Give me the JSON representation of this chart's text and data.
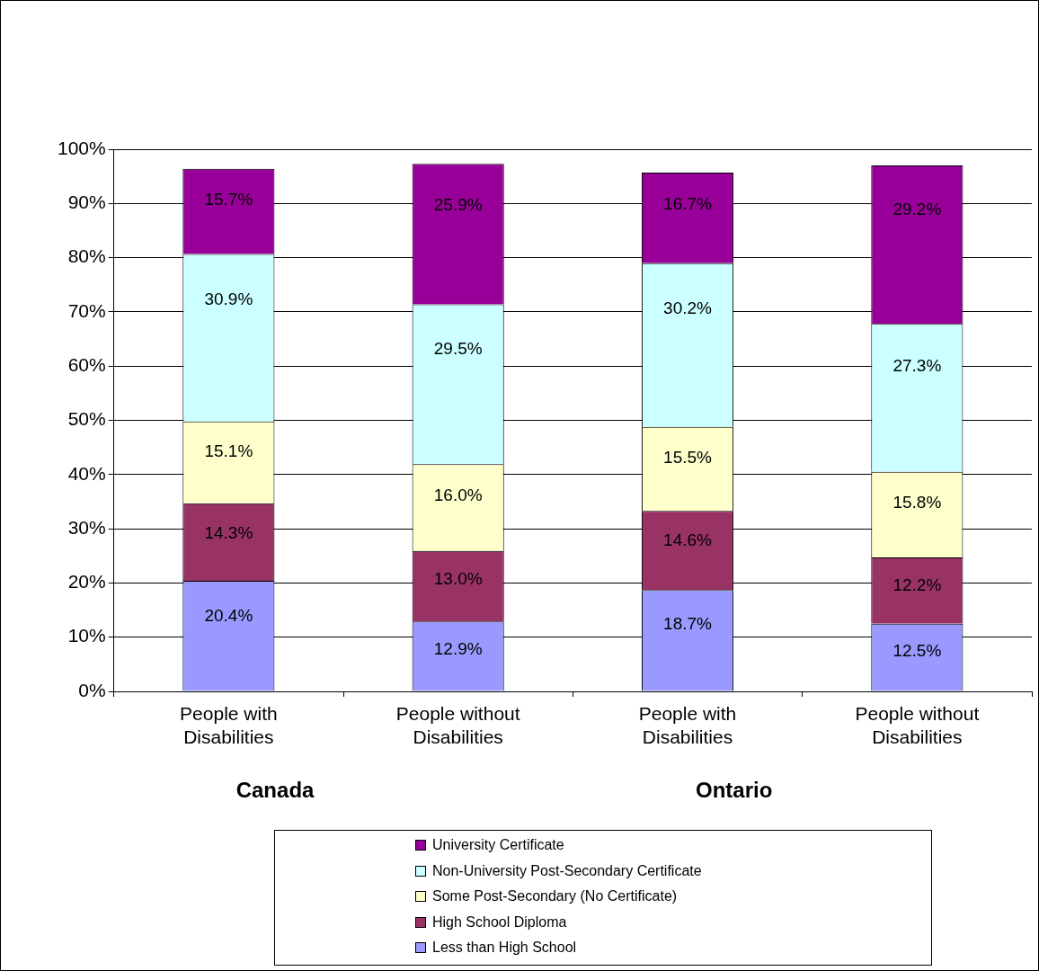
{
  "chart_data": {
    "type": "bar",
    "stacked": true,
    "categories": [
      "People with Disabilities",
      "People without Disabilities",
      "People with Disabilities",
      "People without Disabilities"
    ],
    "series": [
      {
        "name": "Less than High School",
        "color": "#9999ff",
        "values": [
          20.4,
          12.9,
          18.7,
          12.5
        ],
        "value_labels": [
          "20.4%",
          "12.9%",
          "18.7%",
          "12.5%"
        ]
      },
      {
        "name": "High School Diploma",
        "color": "#993366",
        "values": [
          14.3,
          13.0,
          14.6,
          12.2
        ],
        "value_labels": [
          "14.3%",
          "13.0%",
          "14.6%",
          "12.2%"
        ]
      },
      {
        "name": "Some Post-Secondary (No Certificate)",
        "color": "#ffffcc",
        "values": [
          15.1,
          16.0,
          15.5,
          15.8
        ],
        "value_labels": [
          "15.1%",
          "16.0%",
          "15.5%",
          "15.8%"
        ]
      },
      {
        "name": "Non-University Post-Secondary Certificate",
        "color": "#ccffff",
        "values": [
          30.9,
          29.5,
          30.2,
          27.3
        ],
        "value_labels": [
          "30.9%",
          "29.5%",
          "30.2%",
          "27.3%"
        ]
      },
      {
        "name": "University Certificate",
        "color": "#990099",
        "values": [
          15.7,
          25.9,
          16.7,
          29.2
        ],
        "value_labels": [
          "15.7%",
          "25.9%",
          "16.7%",
          "29.2%"
        ]
      }
    ],
    "annotations": [
      "Canada",
      "Ontario"
    ],
    "ylim": [
      0,
      100
    ],
    "yticks": [
      {
        "value": 0,
        "label": "0%"
      },
      {
        "value": 10,
        "label": "10%"
      },
      {
        "value": 20,
        "label": "20%"
      },
      {
        "value": 30,
        "label": "30%"
      },
      {
        "value": 40,
        "label": "40%"
      },
      {
        "value": 50,
        "label": "50%"
      },
      {
        "value": 60,
        "label": "60%"
      },
      {
        "value": 70,
        "label": "70%"
      },
      {
        "value": 80,
        "label": "80%"
      },
      {
        "value": 90,
        "label": "90%"
      },
      {
        "value": 100,
        "label": "100%"
      }
    ],
    "grid": "y",
    "legend": "bottom"
  }
}
